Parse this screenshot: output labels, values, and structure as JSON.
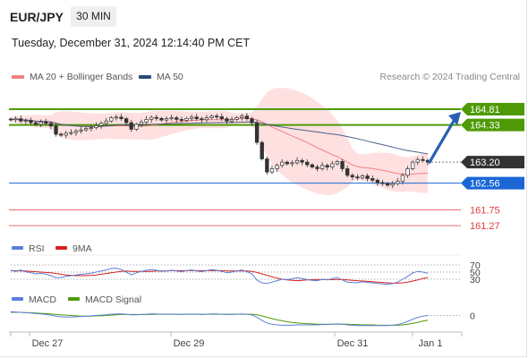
{
  "header": {
    "symbol": "EUR/JPY",
    "timeframe": "30 MIN",
    "datetime": "Tuesday, December 31, 2024 12:14:40 PM CET",
    "credit": "Research © 2024 Trading Central"
  },
  "colors": {
    "resistance": "#4e9a06",
    "support": "#1a66d6",
    "target_red": "#e04040",
    "current": "#333333",
    "ma20": "#f08080",
    "ma50": "#2c4a7a",
    "band": "#ffd6d6",
    "rsi": "#5b7fd9",
    "ma9": "#d62020",
    "macd": "#5b7fd9",
    "macd_signal": "#4e9a06",
    "arrow": "#2a5fb0"
  },
  "chart_data": [
    {
      "type": "candlestick",
      "title": "",
      "legend": [
        {
          "name": "MA 20 + Bollinger Bands",
          "color": "#f08080"
        },
        {
          "name": "MA 50",
          "color": "#2c4a7a"
        }
      ],
      "x_ticks": [
        "Dec 27",
        "Dec 29",
        "Dec 31",
        "Jan 1"
      ],
      "ylim": [
        161.0,
        165.3
      ],
      "levels": [
        {
          "label": "164.81",
          "value": 164.81,
          "kind": "resistance"
        },
        {
          "label": "164.33",
          "value": 164.33,
          "kind": "resistance"
        },
        {
          "label": "163.20",
          "value": 163.2,
          "kind": "current"
        },
        {
          "label": "162.56",
          "value": 162.56,
          "kind": "support"
        },
        {
          "label": "161.75",
          "value": 161.75,
          "kind": "target"
        },
        {
          "label": "161.27",
          "value": 161.27,
          "kind": "target"
        }
      ],
      "closes": [
        164.49,
        164.52,
        164.45,
        164.47,
        164.4,
        164.35,
        164.42,
        164.38,
        164.3,
        164.05,
        164.02,
        164.08,
        164.1,
        164.15,
        164.18,
        164.22,
        164.25,
        164.31,
        164.38,
        164.45,
        164.55,
        164.57,
        164.52,
        164.4,
        164.2,
        164.35,
        164.42,
        164.5,
        164.56,
        164.53,
        164.48,
        164.52,
        164.55,
        164.5,
        164.47,
        164.53,
        164.57,
        164.52,
        164.49,
        164.55,
        164.6,
        164.58,
        164.52,
        164.45,
        164.5,
        164.55,
        164.6,
        164.52,
        164.4,
        163.8,
        163.3,
        162.9,
        163.0,
        163.1,
        163.2,
        163.15,
        163.18,
        163.25,
        163.2,
        163.12,
        163.05,
        163.0,
        163.1,
        163.05,
        163.15,
        163.22,
        163.0,
        162.8,
        162.75,
        162.72,
        162.78,
        162.7,
        162.65,
        162.58,
        162.55,
        162.5,
        162.55,
        162.62,
        162.8,
        163.0,
        163.2,
        163.28,
        163.25,
        163.2
      ]
    },
    {
      "type": "line",
      "title": "",
      "legend": [
        {
          "name": "RSI",
          "color": "#5b7fd9"
        },
        {
          "name": "9MA",
          "color": "#d62020"
        }
      ],
      "levels": [
        {
          "label": "70",
          "value": 70
        },
        {
          "label": "50",
          "value": 50
        },
        {
          "label": "30",
          "value": 30
        }
      ],
      "ylim": [
        0,
        100
      ],
      "series": [
        {
          "name": "RSI",
          "values": [
            55,
            52,
            56,
            51,
            48,
            45,
            47,
            44,
            40,
            34,
            35,
            38,
            40,
            42,
            44,
            45,
            47,
            50,
            53,
            56,
            60,
            61,
            57,
            50,
            42,
            48,
            52,
            55,
            57,
            55,
            52,
            53,
            55,
            53,
            51,
            54,
            56,
            53,
            51,
            54,
            57,
            55,
            52,
            48,
            50,
            53,
            56,
            51,
            45,
            28,
            20,
            18,
            22,
            26,
            30,
            29,
            31,
            34,
            32,
            29,
            27,
            26,
            30,
            28,
            32,
            35,
            28,
            22,
            21,
            20,
            23,
            21,
            20,
            18,
            17,
            16,
            18,
            22,
            30,
            38,
            48,
            52,
            50,
            47
          ]
        },
        {
          "name": "9MA",
          "values": [
            54,
            54,
            53,
            53,
            52,
            51,
            50,
            49,
            48,
            46,
            44,
            42,
            41,
            40,
            40,
            40,
            41,
            42,
            44,
            46,
            48,
            50,
            52,
            53,
            52,
            52,
            52,
            52,
            52,
            53,
            53,
            53,
            54,
            54,
            54,
            54,
            54,
            54,
            54,
            54,
            54,
            54,
            54,
            53,
            53,
            53,
            53,
            53,
            52,
            49,
            45,
            41,
            37,
            33,
            30,
            28,
            27,
            26,
            27,
            28,
            29,
            29,
            29,
            29,
            29,
            29,
            29,
            28,
            27,
            26,
            25,
            24,
            23,
            22,
            21,
            20,
            19,
            19,
            20,
            22,
            25,
            28,
            32,
            35
          ]
        }
      ]
    },
    {
      "type": "line",
      "title": "",
      "legend": [
        {
          "name": "MACD",
          "color": "#5b7fd9"
        },
        {
          "name": "MACD Signal",
          "color": "#4e9a06"
        }
      ],
      "levels": [
        {
          "label": "0",
          "value": 0
        }
      ],
      "ylim": [
        -0.5,
        0.3
      ],
      "series": [
        {
          "name": "MACD",
          "values": [
            0.12,
            0.11,
            0.1,
            0.09,
            0.08,
            0.06,
            0.05,
            0.03,
            0.01,
            -0.02,
            -0.04,
            -0.05,
            -0.05,
            -0.04,
            -0.03,
            -0.02,
            -0.01,
            0.0,
            0.01,
            0.02,
            0.04,
            0.05,
            0.05,
            0.04,
            0.02,
            0.02,
            0.03,
            0.04,
            0.05,
            0.05,
            0.04,
            0.04,
            0.04,
            0.04,
            0.03,
            0.04,
            0.04,
            0.04,
            0.03,
            0.04,
            0.05,
            0.05,
            0.04,
            0.03,
            0.03,
            0.04,
            0.05,
            0.04,
            0.02,
            -0.06,
            -0.16,
            -0.24,
            -0.28,
            -0.3,
            -0.31,
            -0.31,
            -0.31,
            -0.3,
            -0.3,
            -0.3,
            -0.3,
            -0.3,
            -0.29,
            -0.29,
            -0.28,
            -0.27,
            -0.28,
            -0.3,
            -0.31,
            -0.32,
            -0.32,
            -0.32,
            -0.32,
            -0.32,
            -0.32,
            -0.32,
            -0.31,
            -0.29,
            -0.25,
            -0.19,
            -0.12,
            -0.06,
            -0.02,
            0.0
          ]
        },
        {
          "name": "MACD Signal",
          "values": [
            0.1,
            0.1,
            0.1,
            0.09,
            0.09,
            0.08,
            0.07,
            0.06,
            0.05,
            0.03,
            0.02,
            0.01,
            0.0,
            -0.01,
            -0.02,
            -0.02,
            -0.02,
            -0.01,
            -0.01,
            0.0,
            0.01,
            0.02,
            0.03,
            0.03,
            0.03,
            0.03,
            0.03,
            0.03,
            0.03,
            0.04,
            0.04,
            0.04,
            0.04,
            0.04,
            0.04,
            0.04,
            0.04,
            0.04,
            0.04,
            0.04,
            0.04,
            0.04,
            0.04,
            0.04,
            0.04,
            0.04,
            0.04,
            0.04,
            0.04,
            0.02,
            -0.01,
            -0.06,
            -0.1,
            -0.14,
            -0.17,
            -0.2,
            -0.22,
            -0.24,
            -0.25,
            -0.26,
            -0.27,
            -0.28,
            -0.28,
            -0.28,
            -0.28,
            -0.28,
            -0.28,
            -0.28,
            -0.29,
            -0.29,
            -0.3,
            -0.3,
            -0.3,
            -0.31,
            -0.31,
            -0.31,
            -0.31,
            -0.31,
            -0.3,
            -0.28,
            -0.25,
            -0.22,
            -0.18,
            -0.15
          ]
        }
      ]
    }
  ]
}
